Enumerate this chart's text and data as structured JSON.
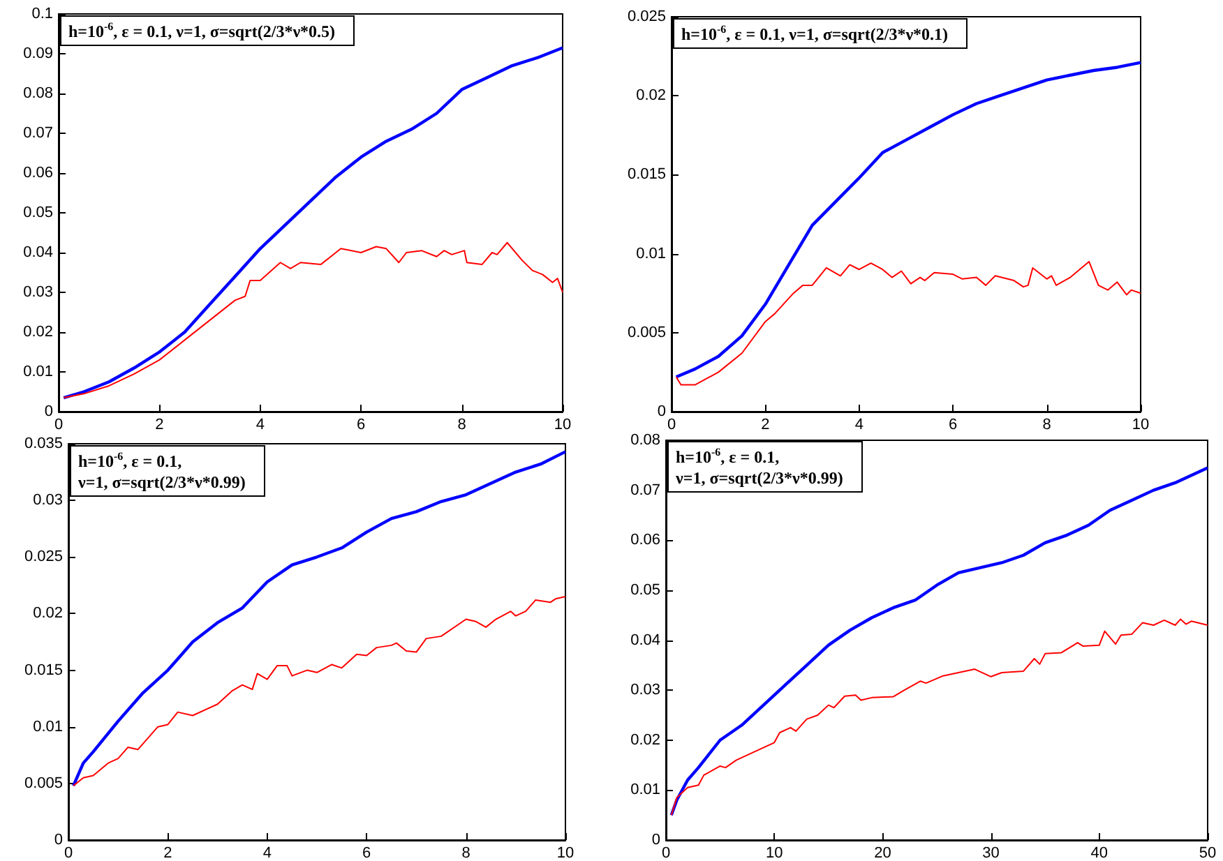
{
  "chart_data": [
    {
      "type": "line",
      "title": "h=10$^{-6}$, ε = 0.1, ν=1, σ=sqrt(2/3*ν*0.5)",
      "xlim": [
        0,
        10
      ],
      "xticks": [
        0,
        2,
        4,
        6,
        8,
        10
      ],
      "ylim": [
        0,
        0.1
      ],
      "yticks": [
        0,
        0.01,
        0.02,
        0.03,
        0.04,
        0.05,
        0.06,
        0.07,
        0.08,
        0.09,
        0.1
      ],
      "series": [
        {
          "color": "#0000ff",
          "x": [
            0.1,
            0.5,
            1,
            1.5,
            2,
            2.5,
            3,
            3.5,
            4,
            4.5,
            5,
            5.5,
            6,
            6.5,
            7,
            7.5,
            8,
            8.5,
            9,
            9.5,
            10
          ],
          "values": [
            0.0035,
            0.005,
            0.0075,
            0.011,
            0.015,
            0.02,
            0.027,
            0.034,
            0.041,
            0.047,
            0.053,
            0.059,
            0.064,
            0.068,
            0.071,
            0.075,
            0.081,
            0.084,
            0.087,
            0.089,
            0.0915
          ]
        },
        {
          "color": "#ff0000",
          "x": [
            0.1,
            0.5,
            1,
            1.5,
            2,
            2.5,
            3,
            3.5,
            3.7,
            3.8,
            4,
            4.4,
            4.6,
            4.8,
            5.2,
            5.4,
            5.6,
            6,
            6.3,
            6.5,
            6.75,
            6.9,
            7.2,
            7.5,
            7.65,
            7.8,
            8.05,
            8.1,
            8.4,
            8.6,
            8.7,
            8.9,
            9.2,
            9.4,
            9.6,
            9.8,
            9.9,
            10
          ],
          "values": [
            0.0035,
            0.0045,
            0.0065,
            0.0095,
            0.013,
            0.018,
            0.023,
            0.028,
            0.029,
            0.033,
            0.033,
            0.0375,
            0.036,
            0.0375,
            0.037,
            0.039,
            0.041,
            0.04,
            0.0415,
            0.041,
            0.0375,
            0.04,
            0.0405,
            0.039,
            0.0405,
            0.0395,
            0.0405,
            0.0375,
            0.037,
            0.04,
            0.0395,
            0.0425,
            0.038,
            0.0355,
            0.0345,
            0.0325,
            0.0335,
            0.03
          ]
        }
      ]
    },
    {
      "type": "line",
      "title": "h=10$^{-6}$, ε = 0.1, ν=1, σ=sqrt(2/3*ν*0.1)",
      "xlim": [
        0,
        10
      ],
      "xticks": [
        0,
        2,
        4,
        6,
        8,
        10
      ],
      "ylim": [
        0,
        0.025
      ],
      "yticks": [
        0,
        0.005,
        0.01,
        0.015,
        0.02,
        0.025
      ],
      "series": [
        {
          "color": "#0000ff",
          "x": [
            0.1,
            0.5,
            1,
            1.5,
            2,
            2.5,
            3,
            3.5,
            4,
            4.5,
            5,
            5.5,
            6,
            6.5,
            7,
            7.5,
            8,
            8.5,
            9,
            9.5,
            10
          ],
          "values": [
            0.0022,
            0.0027,
            0.0035,
            0.0048,
            0.0068,
            0.0093,
            0.0118,
            0.0133,
            0.0148,
            0.0164,
            0.0172,
            0.018,
            0.0188,
            0.0195,
            0.02,
            0.0205,
            0.021,
            0.0213,
            0.0216,
            0.0218,
            0.0221
          ]
        },
        {
          "color": "#ff0000",
          "x": [
            0.1,
            0.2,
            0.5,
            1,
            1.5,
            2,
            2.2,
            2.6,
            2.8,
            3,
            3.3,
            3.6,
            3.8,
            4,
            4.25,
            4.5,
            4.7,
            4.9,
            5.1,
            5.3,
            5.4,
            5.6,
            6,
            6.2,
            6.5,
            6.7,
            6.9,
            7.3,
            7.5,
            7.6,
            7.7,
            8,
            8.1,
            8.2,
            8.5,
            8.9,
            9.1,
            9.3,
            9.5,
            9.7,
            9.8,
            10
          ],
          "values": [
            0.0022,
            0.0017,
            0.0017,
            0.0025,
            0.0037,
            0.0057,
            0.0062,
            0.0075,
            0.008,
            0.008,
            0.0091,
            0.0086,
            0.0093,
            0.009,
            0.0094,
            0.009,
            0.0085,
            0.0089,
            0.0081,
            0.0085,
            0.0083,
            0.0088,
            0.0087,
            0.0084,
            0.0085,
            0.008,
            0.0086,
            0.0083,
            0.0079,
            0.008,
            0.0091,
            0.0084,
            0.0086,
            0.008,
            0.0085,
            0.0095,
            0.008,
            0.0077,
            0.0082,
            0.0074,
            0.0077,
            0.0075
          ]
        }
      ]
    },
    {
      "type": "line",
      "title": "h=10$^{-6}$, ε = 0.1,\nν=1, σ=sqrt(2/3*ν*0.99)",
      "xlim": [
        0,
        10
      ],
      "xticks": [
        0,
        2,
        4,
        6,
        8,
        10
      ],
      "ylim": [
        0,
        0.035
      ],
      "yticks": [
        0,
        0.005,
        0.01,
        0.015,
        0.02,
        0.025,
        0.03,
        0.035
      ],
      "series": [
        {
          "color": "#0000ff",
          "x": [
            0.1,
            0.3,
            0.5,
            1,
            1.5,
            2,
            2.5,
            3,
            3.5,
            4,
            4.5,
            5,
            5.5,
            6,
            6.5,
            7,
            7.5,
            8,
            8.5,
            9,
            9.5,
            10
          ],
          "values": [
            0.0048,
            0.0068,
            0.0078,
            0.0105,
            0.013,
            0.015,
            0.0175,
            0.0192,
            0.0205,
            0.0228,
            0.0243,
            0.025,
            0.0258,
            0.0272,
            0.0284,
            0.029,
            0.0299,
            0.0305,
            0.0315,
            0.0325,
            0.0332,
            0.0343
          ]
        },
        {
          "color": "#ff0000",
          "x": [
            0.1,
            0.3,
            0.5,
            0.8,
            1,
            1.2,
            1.4,
            1.6,
            1.8,
            2,
            2.2,
            2.5,
            3,
            3.3,
            3.5,
            3.7,
            3.8,
            4,
            4.2,
            4.4,
            4.5,
            4.8,
            5,
            5.3,
            5.5,
            5.8,
            6,
            6.2,
            6.5,
            6.6,
            6.8,
            7,
            7.2,
            7.5,
            8,
            8.2,
            8.4,
            8.6,
            8.9,
            9,
            9.2,
            9.4,
            9.7,
            9.8,
            10
          ],
          "values": [
            0.0048,
            0.0055,
            0.0057,
            0.0068,
            0.0072,
            0.0082,
            0.008,
            0.009,
            0.01,
            0.0102,
            0.0113,
            0.011,
            0.012,
            0.0132,
            0.0137,
            0.0133,
            0.0147,
            0.0142,
            0.0154,
            0.0154,
            0.0145,
            0.015,
            0.0148,
            0.0155,
            0.0152,
            0.0164,
            0.0163,
            0.017,
            0.0172,
            0.0174,
            0.0167,
            0.0166,
            0.0178,
            0.018,
            0.0195,
            0.0193,
            0.0188,
            0.0195,
            0.0202,
            0.0198,
            0.0202,
            0.0212,
            0.021,
            0.0213,
            0.0215
          ]
        }
      ]
    },
    {
      "type": "line",
      "title": "h=10$^{-6}$, ε = 0.1,\nν=1, σ=sqrt(2/3*ν*0.99)",
      "xlim": [
        0,
        50
      ],
      "xticks": [
        0,
        10,
        20,
        30,
        40,
        50
      ],
      "ylim": [
        0,
        0.08
      ],
      "yticks": [
        0,
        0.01,
        0.02,
        0.03,
        0.04,
        0.05,
        0.06,
        0.07,
        0.08
      ],
      "series": [
        {
          "color": "#0000ff",
          "x": [
            0.5,
            1,
            2,
            3,
            5,
            7,
            9,
            11,
            13,
            15,
            17,
            19,
            21,
            23,
            25,
            27,
            29,
            31,
            33,
            35,
            37,
            39,
            41,
            43,
            45,
            47,
            50
          ],
          "values": [
            0.005,
            0.008,
            0.012,
            0.0145,
            0.02,
            0.023,
            0.027,
            0.031,
            0.035,
            0.039,
            0.042,
            0.0445,
            0.0465,
            0.048,
            0.051,
            0.0535,
            0.0545,
            0.0555,
            0.057,
            0.0595,
            0.061,
            0.063,
            0.066,
            0.068,
            0.07,
            0.0715,
            0.0745
          ]
        },
        {
          "color": "#ff0000",
          "x": [
            0.5,
            1,
            2,
            3,
            3.5,
            5,
            5.5,
            6.5,
            8,
            10,
            10.5,
            11.5,
            12,
            13,
            14,
            15,
            15.5,
            16.5,
            17.5,
            18,
            19,
            21,
            22,
            23.5,
            24,
            25.5,
            27,
            28.5,
            30,
            31,
            33,
            34,
            34.5,
            35,
            36.5,
            38,
            38.5,
            40,
            40.5,
            41.5,
            42,
            43,
            44,
            45,
            46,
            47,
            47.5,
            48,
            48.5,
            50
          ],
          "values": [
            0.005,
            0.0085,
            0.0105,
            0.011,
            0.013,
            0.0148,
            0.0145,
            0.016,
            0.0175,
            0.0195,
            0.0215,
            0.0225,
            0.0218,
            0.0242,
            0.025,
            0.027,
            0.0265,
            0.0288,
            0.029,
            0.028,
            0.0285,
            0.0287,
            0.03,
            0.0318,
            0.0314,
            0.0328,
            0.0335,
            0.0342,
            0.0327,
            0.0335,
            0.0338,
            0.0363,
            0.0352,
            0.0373,
            0.0375,
            0.0395,
            0.0388,
            0.039,
            0.0418,
            0.0392,
            0.041,
            0.0412,
            0.0435,
            0.043,
            0.044,
            0.043,
            0.0442,
            0.0432,
            0.0438,
            0.043
          ]
        }
      ]
    }
  ]
}
